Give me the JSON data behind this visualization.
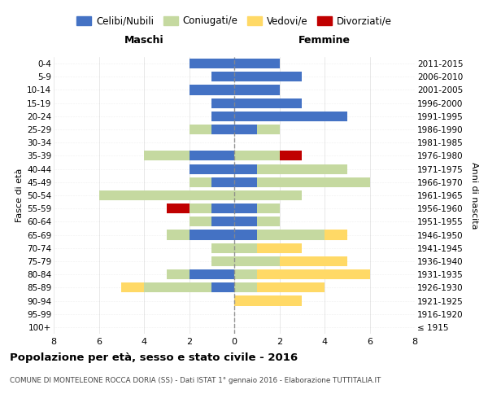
{
  "age_groups": [
    "100+",
    "95-99",
    "90-94",
    "85-89",
    "80-84",
    "75-79",
    "70-74",
    "65-69",
    "60-64",
    "55-59",
    "50-54",
    "45-49",
    "40-44",
    "35-39",
    "30-34",
    "25-29",
    "20-24",
    "15-19",
    "10-14",
    "5-9",
    "0-4"
  ],
  "birth_years": [
    "≤ 1915",
    "1916-1920",
    "1921-1925",
    "1926-1930",
    "1931-1935",
    "1936-1940",
    "1941-1945",
    "1946-1950",
    "1951-1955",
    "1956-1960",
    "1961-1965",
    "1966-1970",
    "1971-1975",
    "1976-1980",
    "1981-1985",
    "1986-1990",
    "1991-1995",
    "1996-2000",
    "2001-2005",
    "2006-2010",
    "2011-2015"
  ],
  "males": {
    "celibi": [
      0,
      0,
      0,
      1,
      2,
      0,
      0,
      2,
      1,
      1,
      0,
      1,
      2,
      2,
      0,
      1,
      1,
      1,
      2,
      1,
      2
    ],
    "coniugati": [
      0,
      0,
      0,
      3,
      1,
      1,
      1,
      1,
      1,
      1,
      6,
      1,
      0,
      2,
      0,
      1,
      0,
      0,
      0,
      0,
      0
    ],
    "vedovi": [
      0,
      0,
      0,
      1,
      0,
      0,
      0,
      0,
      0,
      0,
      0,
      0,
      0,
      0,
      0,
      0,
      0,
      0,
      0,
      0,
      0
    ],
    "divorziati": [
      0,
      0,
      0,
      0,
      0,
      0,
      0,
      0,
      0,
      1,
      0,
      0,
      0,
      0,
      0,
      0,
      0,
      0,
      0,
      0,
      0
    ]
  },
  "females": {
    "nubili": [
      0,
      0,
      0,
      0,
      0,
      0,
      0,
      1,
      1,
      1,
      0,
      1,
      1,
      0,
      0,
      1,
      5,
      3,
      2,
      3,
      2
    ],
    "coniugate": [
      0,
      0,
      0,
      1,
      1,
      2,
      1,
      3,
      1,
      1,
      3,
      5,
      4,
      2,
      0,
      1,
      0,
      0,
      0,
      0,
      0
    ],
    "vedove": [
      0,
      0,
      3,
      3,
      5,
      3,
      2,
      1,
      0,
      0,
      0,
      0,
      0,
      0,
      0,
      0,
      0,
      0,
      0,
      0,
      0
    ],
    "divorziate": [
      0,
      0,
      0,
      0,
      0,
      0,
      0,
      0,
      0,
      0,
      0,
      0,
      0,
      1,
      0,
      0,
      0,
      0,
      0,
      0,
      0
    ]
  },
  "colors": {
    "celibi_nubili": "#4472C4",
    "coniugati": "#C5D9A0",
    "vedovi": "#FFD966",
    "divorziati": "#C00000"
  },
  "xlim": 8,
  "title": "Popolazione per età, sesso e stato civile - 2016",
  "subtitle": "COMUNE DI MONTELEONE ROCCA DORIA (SS) - Dati ISTAT 1° gennaio 2016 - Elaborazione TUTTITALIA.IT",
  "ylabel_left": "Fasce di età",
  "ylabel_right": "Anni di nascita",
  "xlabel_left": "Maschi",
  "xlabel_right": "Femmine",
  "legend_labels": [
    "Celibi/Nubili",
    "Coniugati/e",
    "Vedovi/e",
    "Divorziati/e"
  ]
}
